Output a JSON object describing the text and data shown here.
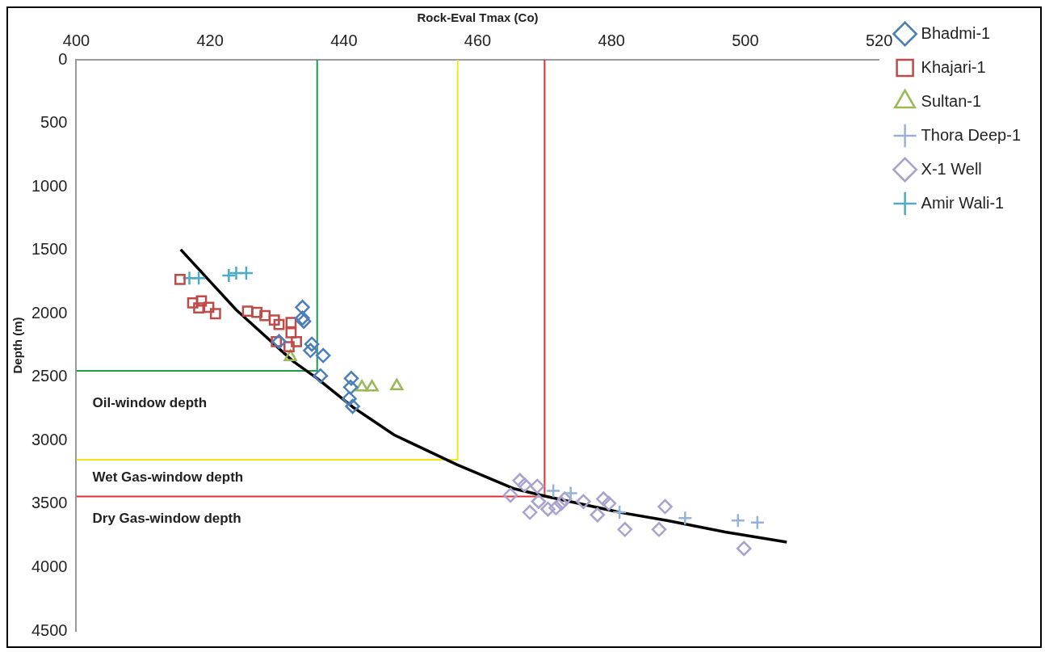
{
  "chart_data": {
    "type": "scatter",
    "xlabel": "Rock-Eval Tmax (Co)",
    "ylabel": "Depth (m)",
    "xlim": [
      400,
      520
    ],
    "xticks": [
      400,
      420,
      440,
      460,
      480,
      500,
      520
    ],
    "ylim": [
      4500,
      0
    ],
    "yticks": [
      0,
      500,
      1000,
      1500,
      2000,
      2500,
      3000,
      3500,
      4000,
      4500
    ],
    "grid": false,
    "legend": "top right",
    "series": [
      {
        "name": "Bhadmi-1",
        "color": "#4a7ebb",
        "marker": "diamond",
        "x": [
          433.8,
          433.8,
          434,
          435.2,
          435,
          436.9,
          436.5,
          441.1,
          441,
          440.8,
          441.3,
          430.3
        ],
        "values": [
          1950,
          2035,
          2060,
          2240,
          2290,
          2330,
          2490,
          2510,
          2580,
          2670,
          2730,
          2220
        ]
      },
      {
        "name": "Khajari-1",
        "color": "#be4b48",
        "marker": "square",
        "x": [
          415.5,
          417.4,
          418.7,
          419.8,
          420.8,
          418.3,
          425.6,
          427,
          428.2,
          429.6,
          430.3,
          432.1,
          432.1,
          429.9,
          432.9,
          431.8
        ],
        "values": [
          1730,
          1915,
          1900,
          1950,
          2000,
          1955,
          1980,
          1990,
          2015,
          2050,
          2085,
          2070,
          2150,
          2220,
          2220,
          2260
        ]
      },
      {
        "name": "Sultan-1",
        "color": "#98b954",
        "marker": "triangle",
        "x": [
          432,
          442.7,
          444.2,
          447.9
        ],
        "values": [
          2340,
          2580,
          2580,
          2570
        ]
      },
      {
        "name": "Thora Deep-1",
        "color": "#95b3d7",
        "marker": "cross",
        "x": [
          471.3,
          473.9,
          481.2,
          491,
          498.9,
          501.8
        ],
        "values": [
          3395,
          3415,
          3565,
          3610,
          3630,
          3645
        ]
      },
      {
        "name": "X-1 Well",
        "color": "#a9a2cc",
        "marker": "diamond",
        "x": [
          464.9,
          466.3,
          467,
          467.8,
          468.9,
          469.1,
          471.7,
          472.5,
          473,
          475.8,
          477.9,
          478.8,
          479.6,
          482,
          487.1,
          488,
          499.8,
          470.5
        ],
        "values": [
          3430,
          3315,
          3350,
          3565,
          3360,
          3480,
          3530,
          3495,
          3460,
          3480,
          3585,
          3460,
          3495,
          3700,
          3700,
          3520,
          3850,
          3540
        ]
      },
      {
        "name": "Amir Wali-1",
        "color": "#4bacc6",
        "marker": "cross",
        "x": [
          416.9,
          418.3,
          422.8,
          423.9,
          425.4
        ],
        "values": [
          1720,
          1720,
          1700,
          1680,
          1680
        ]
      },
      {
        "type": "line",
        "color": "#000000",
        "marker": "none",
        "x": [
          415.6,
          423.9,
          432.4,
          436,
          441.3,
          447.5,
          456.9,
          465.5,
          470.3,
          481.2,
          488.3,
          497,
          506.2
        ],
        "values": [
          1495,
          1970,
          2375,
          2510,
          2735,
          2955,
          3190,
          3380,
          3440,
          3565,
          3630,
          3720,
          3800
        ]
      },
      {
        "type": "line",
        "color": "#1a9e47",
        "marker": "none",
        "x": [
          400,
          436,
          436
        ],
        "values": [
          2450,
          2450,
          0
        ]
      },
      {
        "type": "line",
        "color": "#f0e81c",
        "marker": "none",
        "x": [
          400,
          457,
          457
        ],
        "values": [
          3150,
          3150,
          0
        ]
      },
      {
        "type": "line",
        "color": "#e03030",
        "marker": "none",
        "x": [
          400,
          470,
          470
        ],
        "values": [
          3440,
          3440,
          0
        ]
      }
    ],
    "annotations": [
      "Oil-window depth",
      "Wet Gas-window depth",
      "Dry Gas-window depth"
    ]
  }
}
